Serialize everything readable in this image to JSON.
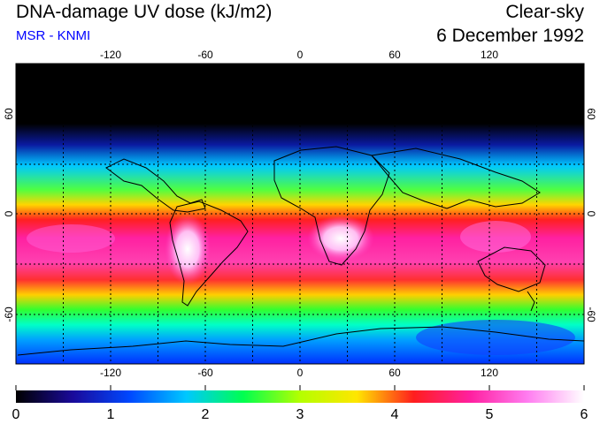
{
  "header": {
    "title": "DNA-damage UV dose (kJ/m2)",
    "subtitle": "MSR - KNMI",
    "view": "Clear-sky",
    "date": "6 December 1992"
  },
  "colors": {
    "subtitle": "#0000ff",
    "ramp": [
      "#000000",
      "#1a0a9a",
      "#0048ff",
      "#00c8ff",
      "#00ff50",
      "#b4ff00",
      "#ffe600",
      "#ff1e1e",
      "#ff20a0",
      "#ff7cf0",
      "#ffffff"
    ]
  },
  "map": {
    "lon_ticks": [
      "-120",
      "-60",
      "0",
      "60",
      "120"
    ],
    "lat_ticks": [
      "60",
      "0",
      "-60"
    ]
  },
  "colorbar": {
    "labels": [
      "0",
      "1",
      "2",
      "3",
      "4",
      "5",
      "6"
    ],
    "range": [
      0,
      6
    ]
  }
}
